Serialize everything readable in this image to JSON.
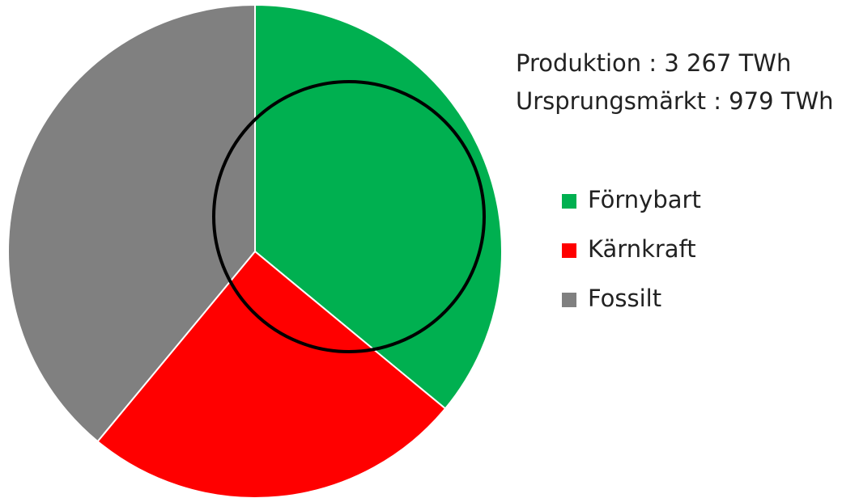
{
  "chart_data": {
    "type": "pie",
    "annotations": [
      "Produktion : 3 267 TWh",
      "Ursprungsmärkt : 979 TWh"
    ],
    "categories": [
      "Förnybart",
      "Kärnkraft",
      "Fossilt"
    ],
    "values": [
      36,
      25,
      39
    ],
    "colors": [
      "#00b050",
      "#ff0000",
      "#808080"
    ],
    "legend": "right"
  }
}
